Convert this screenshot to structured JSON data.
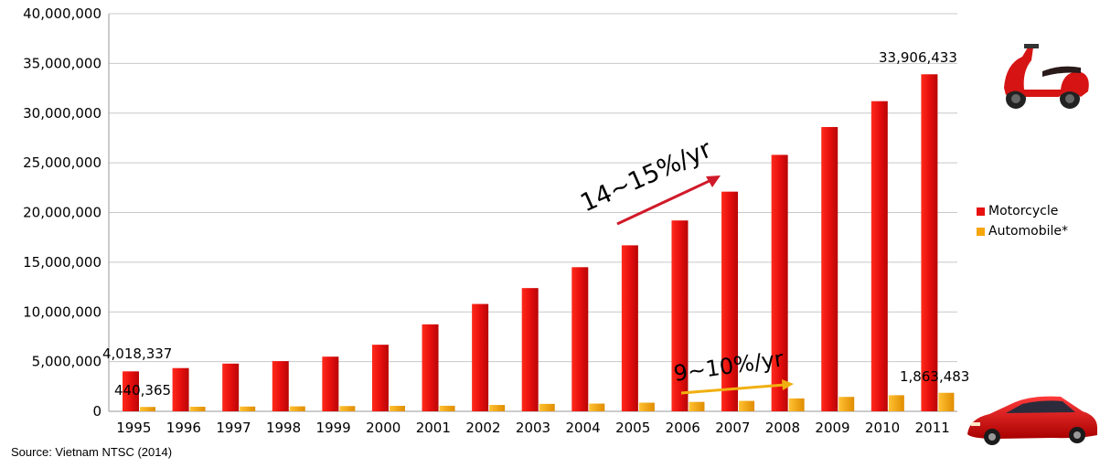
{
  "chart_data": {
    "type": "bar",
    "categories": [
      "1995",
      "1996",
      "1997",
      "1998",
      "1999",
      "2000",
      "2001",
      "2002",
      "2003",
      "2004",
      "2005",
      "2006",
      "2007",
      "2008",
      "2009",
      "2010",
      "2011"
    ],
    "series": [
      {
        "name": "Motorcycle",
        "color": "#e8100f",
        "values": [
          4018337,
          4350000,
          4800000,
          5050000,
          5500000,
          6700000,
          8750000,
          10800000,
          12400000,
          14500000,
          16700000,
          19200000,
          22100000,
          25800000,
          28600000,
          31200000,
          33906433
        ]
      },
      {
        "name": "Automobile*",
        "color": "#f6a50c",
        "values": [
          440365,
          460000,
          480000,
          500000,
          530000,
          550000,
          560000,
          640000,
          750000,
          780000,
          870000,
          950000,
          1050000,
          1300000,
          1450000,
          1620000,
          1863483
        ]
      }
    ],
    "ylim": [
      0,
      40000000
    ],
    "yticks": [
      "0",
      "5,000,000",
      "10,000,000",
      "15,000,000",
      "20,000,000",
      "25,000,000",
      "30,000,000",
      "35,000,000",
      "40,000,000"
    ],
    "data_labels": {
      "moto_first": "4,018,337",
      "moto_last": "33,906,433",
      "auto_first": "440,365",
      "auto_last": "1,863,483"
    },
    "annotations": {
      "motorcycle_growth": "14~15%/yr",
      "automobile_growth": "9~10%/yr"
    },
    "grid": true,
    "legend": "right",
    "source": "Source: Vietnam NTSC (2014)"
  }
}
